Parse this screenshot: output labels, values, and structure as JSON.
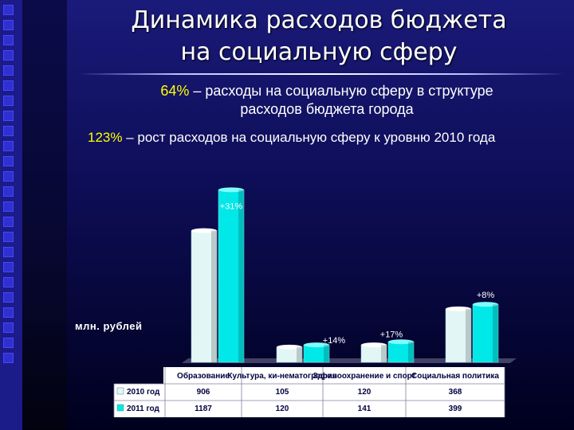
{
  "slide": {
    "title_line1": "Динамика расходов бюджета",
    "title_line2": "на социальную сферу",
    "stat1_value": "64%",
    "stat1_line1_rest": " – расходы на социальную сферу в структуре",
    "stat1_line2": "расходов бюджета города",
    "stat2_value": "123%",
    "stat2_rest": " –  рост расходов на социальную сферу к уровню 2010 года",
    "unit_label": "млн. рублей"
  },
  "colors": {
    "series_2010": "#e3f6f6",
    "series_2011": "#00e8e8",
    "accent": "#ffff00"
  },
  "chart_data": {
    "type": "bar",
    "categories": [
      "Образование",
      "Культура, ки-нематография",
      "Здравоохранение и спорт",
      "Социальная политика"
    ],
    "series": [
      {
        "name": "2010 год",
        "values": [
          906,
          105,
          120,
          368
        ]
      },
      {
        "name": "2011 год",
        "values": [
          1187,
          120,
          141,
          399
        ]
      }
    ],
    "growth_labels": [
      "+31%",
      "+14%",
      "+17%",
      "+8%"
    ],
    "ylabel": "млн. рублей",
    "ylim": [
      0,
      1200
    ],
    "grid": false,
    "legend": "table-below"
  }
}
